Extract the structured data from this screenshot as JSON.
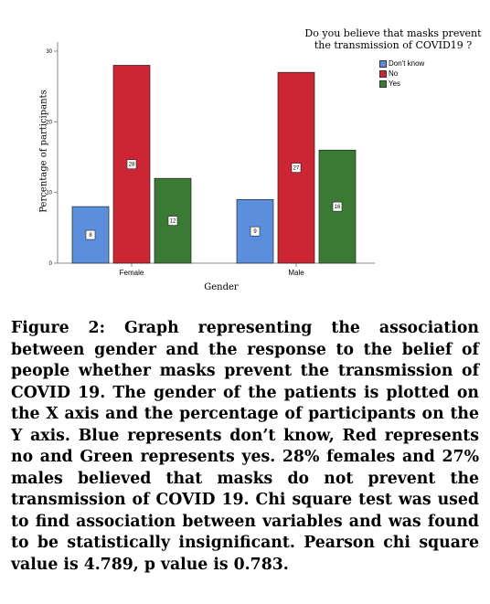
{
  "chart_data": {
    "type": "bar",
    "legend_title": "Do you believe that masks prevent the transmission of COVID19 ?",
    "legend_placement": "top-right",
    "xlabel": "Gender",
    "ylabel": "Percentage of participants",
    "categories": [
      "Female",
      "Male"
    ],
    "ylim": [
      0,
      30
    ],
    "yticks": [
      0,
      10,
      20,
      30
    ],
    "grid": false,
    "series": [
      {
        "name": "Don't know",
        "color": "#5b8fde",
        "values": [
          8,
          9
        ]
      },
      {
        "name": "No",
        "color": "#cc2533",
        "values": [
          28,
          27
        ]
      },
      {
        "name": "Yes",
        "color": "#3b7a34",
        "values": [
          12,
          16
        ]
      }
    ]
  },
  "caption": "Figure 2: Graph representing the association between gender and the response to the belief of people whether masks prevent the transmission of COVID 19. The gender of the patients is plotted on the X axis and the percentage of participants on the Y axis. Blue represents don’t know, Red represents no and Green represents yes. 28% females and 27% males believed that masks do not prevent the transmission of COVID 19. Chi square test was used to find association between variables and was found to be statistically insignificant. Pearson chi square value is 4.789, p value is 0.783."
}
